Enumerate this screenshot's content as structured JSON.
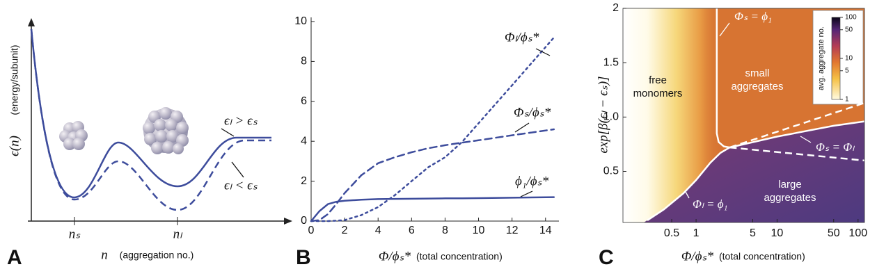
{
  "chart_data": [
    {
      "type": "schematic",
      "panel_label": "A",
      "ylabel": "ϵ(n)",
      "ylabel_note": "(energy/subunit)",
      "xlabel": "n",
      "xlabel_note": "(aggregation no.)",
      "categories": [
        "nₛ",
        "nₗ"
      ],
      "annotations": [
        "ϵₗ > ϵₛ",
        "ϵₗ < ϵₛ"
      ],
      "color": "#3d4c9c"
    },
    {
      "type": "line",
      "panel_label": "B",
      "xlabel": "Φ/ϕₛ*",
      "xlabel_note": "(total concentration)",
      "x": [
        0,
        0.5,
        1,
        1.5,
        2,
        3,
        4,
        5,
        6,
        7,
        8,
        9,
        10,
        12,
        14.5
      ],
      "series": [
        {
          "name": "Φₗ/ϕₛ*",
          "color": "#3d4c9c",
          "style": "dotted",
          "values": [
            0,
            0,
            0,
            0.02,
            0.05,
            0.3,
            0.7,
            1.3,
            2.0,
            2.7,
            3.2,
            3.95,
            4.9,
            6.8,
            9.2
          ]
        },
        {
          "name": "Φₛ/ϕₛ*",
          "color": "#3d4c9c",
          "style": "dashed",
          "values": [
            0,
            0.05,
            0.35,
            0.85,
            1.4,
            2.3,
            2.9,
            3.2,
            3.45,
            3.65,
            3.8,
            3.93,
            4.05,
            4.3,
            4.6
          ]
        },
        {
          "name": "ϕ₁/ϕₛ*",
          "color": "#3d4c9c",
          "style": "solid",
          "values": [
            0,
            0.5,
            0.85,
            0.97,
            1.02,
            1.07,
            1.1,
            1.11,
            1.12,
            1.13,
            1.14,
            1.14,
            1.15,
            1.17,
            1.2
          ]
        }
      ],
      "xlim": [
        0,
        14.8
      ],
      "xticks": [
        0,
        2,
        4,
        6,
        8,
        10,
        12,
        14
      ],
      "ylim": [
        0,
        10
      ],
      "yticks": [
        0,
        2,
        4,
        6,
        8,
        10
      ]
    },
    {
      "type": "heatmap",
      "panel_label": "C",
      "xlabel": "Φ/ϕₛ*",
      "xlabel_note": "(total concentration)",
      "ylabel": "exp[β(ϵₗ − ϵₛ)]",
      "xscale": "log",
      "xlim": [
        0.125,
        120
      ],
      "xticks": [
        0.5,
        1,
        5,
        10,
        50,
        100
      ],
      "ylim": [
        0.03,
        2.0
      ],
      "yticks": [
        0.5,
        {
          "value": 1,
          "label": "1.0"
        },
        1.5,
        2.0
      ],
      "regions": [
        "free\nmonomers",
        "small\naggregates",
        "large\naggregates"
      ],
      "series": [
        {
          "name": "Φₛ = ϕ₁",
          "color": "#ffffff",
          "style": "solid",
          "x": [
            1.8,
            1.8,
            1.9,
            2.2,
            2.6
          ],
          "values": [
            2.0,
            0.85,
            0.77,
            0.73,
            0.72
          ]
        },
        {
          "name": "Φₛ = Φₗ",
          "color": "#ffffff",
          "style": "solid",
          "x": [
            2.6,
            10,
            50,
            120
          ],
          "values": [
            0.72,
            0.82,
            0.92,
            0.96
          ]
        },
        {
          "name": "Φₗ = ϕ₁",
          "color": "#ffffff",
          "style": "solid",
          "x": [
            0.25,
            0.4,
            0.7,
            1,
            1.5,
            2,
            2.6
          ],
          "values": [
            0.05,
            0.15,
            0.3,
            0.42,
            0.58,
            0.67,
            0.72
          ]
        },
        {
          "color": "#ffffff",
          "style": "dashed",
          "x": [
            2.6,
            120
          ],
          "values": [
            0.72,
            1.13
          ]
        },
        {
          "color": "#ffffff",
          "style": "dashed",
          "x": [
            2.6,
            120
          ],
          "values": [
            0.72,
            0.6
          ]
        }
      ],
      "colorbar": {
        "label": "avg. aggregate no.",
        "scale": "log",
        "lim": [
          1,
          100
        ],
        "ticks": [
          1,
          5,
          10,
          50,
          100
        ]
      }
    }
  ]
}
